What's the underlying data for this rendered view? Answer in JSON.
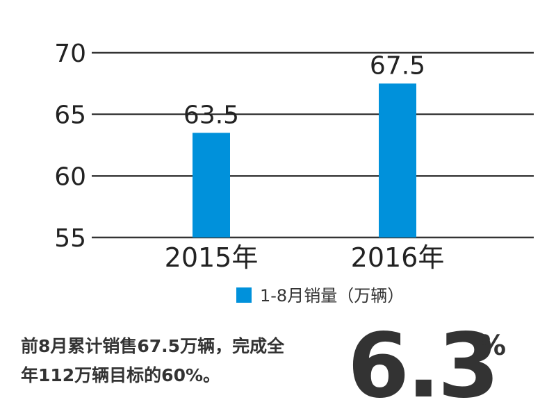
{
  "chart_data": {
    "type": "bar",
    "categories": [
      "2015年",
      "2016年"
    ],
    "values": [
      63.5,
      67.5
    ],
    "data_labels": [
      "63.5",
      "67.5"
    ],
    "ylim": [
      55,
      70
    ],
    "yticks": [
      55,
      60,
      65,
      70
    ],
    "ytick_labels": [
      "55",
      "60",
      "65",
      "70"
    ],
    "grid": true,
    "legend": "bottom-center",
    "series": [
      {
        "name": "1-8月销量（万辆）",
        "color": "#0091DB",
        "values": [
          63.5,
          67.5
        ]
      }
    ]
  },
  "note": {
    "line1": "前8月累计销售67.5万辆，完成全",
    "line2": "年112万辆目标的60%。"
  },
  "highlight": {
    "value": "6.3",
    "unit": "%"
  }
}
